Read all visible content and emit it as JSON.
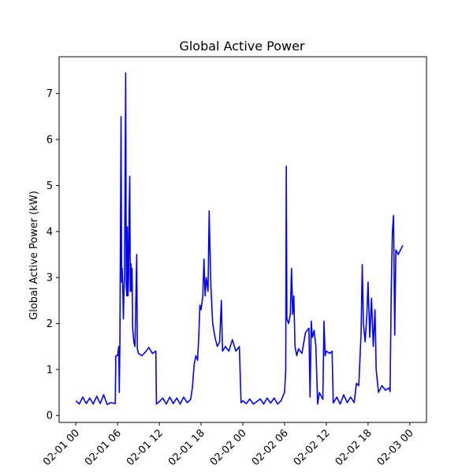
{
  "chart_data": {
    "type": "line",
    "title": "Global Active Power",
    "xlabel": "",
    "ylabel": "Global Active Power (kW)",
    "x_axis_type": "datetime",
    "xlim": [
      "2007-02-01 00:00",
      "2007-03-01 00:00"
    ],
    "ylim": [
      -0.15,
      7.8
    ],
    "xticks": [
      {
        "x": "2007-02-01 00:00",
        "label": "02-01 00"
      },
      {
        "x": "2007-02-01 06:00",
        "label": "02-01 06"
      },
      {
        "x": "2007-02-01 12:00",
        "label": "02-01 12"
      },
      {
        "x": "2007-02-01 18:00",
        "label": "02-01 18"
      },
      {
        "x": "2007-02-02 00:00",
        "label": "02-02 00"
      },
      {
        "x": "2007-02-02 06:00",
        "label": "02-02 06"
      },
      {
        "x": "2007-02-02 12:00",
        "label": "02-02 12"
      },
      {
        "x": "2007-02-02 18:00",
        "label": "02-02 18"
      },
      {
        "x": "2007-02-03 00:00",
        "label": "02-03 00"
      }
    ],
    "yticks": [
      0,
      1,
      2,
      3,
      4,
      5,
      6,
      7
    ],
    "grid": false,
    "legend": "none",
    "series": [
      {
        "color": "#0000ff",
        "points": [
          [
            "2007-02-01 00:00",
            0.32
          ],
          [
            "2007-02-01 00:30",
            0.25
          ],
          [
            "2007-02-01 01:00",
            0.4
          ],
          [
            "2007-02-01 01:30",
            0.26
          ],
          [
            "2007-02-01 02:00",
            0.38
          ],
          [
            "2007-02-01 02:30",
            0.25
          ],
          [
            "2007-02-01 03:00",
            0.42
          ],
          [
            "2007-02-01 03:30",
            0.26
          ],
          [
            "2007-02-01 04:00",
            0.45
          ],
          [
            "2007-02-01 04:30",
            0.24
          ],
          [
            "2007-02-01 05:00",
            0.28
          ],
          [
            "2007-02-01 05:40",
            0.26
          ],
          [
            "2007-02-01 05:45",
            1.3
          ],
          [
            "2007-02-01 06:00",
            1.3
          ],
          [
            "2007-02-01 06:10",
            1.5
          ],
          [
            "2007-02-01 06:15",
            0.5
          ],
          [
            "2007-02-01 06:20",
            1.6
          ],
          [
            "2007-02-01 06:30",
            6.5
          ],
          [
            "2007-02-01 06:35",
            2.9
          ],
          [
            "2007-02-01 06:40",
            3.2
          ],
          [
            "2007-02-01 06:45",
            2.8
          ],
          [
            "2007-02-01 06:50",
            2.1
          ],
          [
            "2007-02-01 06:55",
            2.7
          ],
          [
            "2007-02-01 07:00",
            3.0
          ],
          [
            "2007-02-01 07:10",
            7.45
          ],
          [
            "2007-02-01 07:15",
            2.8
          ],
          [
            "2007-02-01 07:20",
            2.6
          ],
          [
            "2007-02-01 07:25",
            4.1
          ],
          [
            "2007-02-01 07:30",
            2.6
          ],
          [
            "2007-02-01 07:35",
            3.0
          ],
          [
            "2007-02-01 07:40",
            4.5
          ],
          [
            "2007-02-01 07:45",
            5.2
          ],
          [
            "2007-02-01 07:50",
            2.7
          ],
          [
            "2007-02-01 07:55",
            3.3
          ],
          [
            "2007-02-01 08:00",
            2.7
          ],
          [
            "2007-02-01 08:05",
            3.2
          ],
          [
            "2007-02-01 08:10",
            1.9
          ],
          [
            "2007-02-01 08:20",
            1.6
          ],
          [
            "2007-02-01 08:30",
            1.5
          ],
          [
            "2007-02-01 08:45",
            3.5
          ],
          [
            "2007-02-01 08:50",
            1.45
          ],
          [
            "2007-02-01 09:00",
            1.35
          ],
          [
            "2007-02-01 09:30",
            1.3
          ],
          [
            "2007-02-01 10:00",
            1.38
          ],
          [
            "2007-02-01 10:30",
            1.48
          ],
          [
            "2007-02-01 11:00",
            1.35
          ],
          [
            "2007-02-01 11:30",
            1.4
          ],
          [
            "2007-02-01 11:35",
            0.25
          ],
          [
            "2007-02-01 12:00",
            0.3
          ],
          [
            "2007-02-01 12:30",
            0.38
          ],
          [
            "2007-02-01 13:00",
            0.25
          ],
          [
            "2007-02-01 13:30",
            0.4
          ],
          [
            "2007-02-01 14:00",
            0.26
          ],
          [
            "2007-02-01 14:30",
            0.38
          ],
          [
            "2007-02-01 15:00",
            0.25
          ],
          [
            "2007-02-01 15:30",
            0.4
          ],
          [
            "2007-02-01 16:00",
            0.28
          ],
          [
            "2007-02-01 16:30",
            0.35
          ],
          [
            "2007-02-01 16:45",
            0.6
          ],
          [
            "2007-02-01 17:00",
            1.1
          ],
          [
            "2007-02-01 17:15",
            1.3
          ],
          [
            "2007-02-01 17:30",
            1.2
          ],
          [
            "2007-02-01 17:40",
            1.7
          ],
          [
            "2007-02-01 17:50",
            2.4
          ],
          [
            "2007-02-01 18:00",
            2.3
          ],
          [
            "2007-02-01 18:15",
            2.6
          ],
          [
            "2007-02-01 18:25",
            3.4
          ],
          [
            "2007-02-01 18:35",
            2.6
          ],
          [
            "2007-02-01 18:45",
            3.0
          ],
          [
            "2007-02-01 19:00",
            2.7
          ],
          [
            "2007-02-01 19:10",
            4.45
          ],
          [
            "2007-02-01 19:15",
            3.8
          ],
          [
            "2007-02-01 19:25",
            2.8
          ],
          [
            "2007-02-01 19:40",
            2.0
          ],
          [
            "2007-02-01 20:00",
            1.7
          ],
          [
            "2007-02-01 20:20",
            1.5
          ],
          [
            "2007-02-01 20:40",
            1.6
          ],
          [
            "2007-02-01 20:55",
            2.5
          ],
          [
            "2007-02-01 21:05",
            1.4
          ],
          [
            "2007-02-01 21:30",
            1.5
          ],
          [
            "2007-02-01 22:00",
            1.4
          ],
          [
            "2007-02-01 22:30",
            1.65
          ],
          [
            "2007-02-01 23:00",
            1.4
          ],
          [
            "2007-02-01 23:30",
            1.5
          ],
          [
            "2007-02-01 23:45",
            0.28
          ],
          [
            "2007-02-02 00:00",
            0.32
          ],
          [
            "2007-02-02 00:30",
            0.26
          ],
          [
            "2007-02-02 01:00",
            0.36
          ],
          [
            "2007-02-02 01:30",
            0.25
          ],
          [
            "2007-02-02 02:00",
            0.3
          ],
          [
            "2007-02-02 02:30",
            0.36
          ],
          [
            "2007-02-02 03:00",
            0.25
          ],
          [
            "2007-02-02 03:30",
            0.38
          ],
          [
            "2007-02-02 04:00",
            0.27
          ],
          [
            "2007-02-02 04:30",
            0.38
          ],
          [
            "2007-02-02 05:00",
            0.25
          ],
          [
            "2007-02-02 05:30",
            0.32
          ],
          [
            "2007-02-02 05:50",
            0.45
          ],
          [
            "2007-02-02 06:00",
            0.5
          ],
          [
            "2007-02-02 06:10",
            1.0
          ],
          [
            "2007-02-02 06:15",
            5.42
          ],
          [
            "2007-02-02 06:20",
            2.1
          ],
          [
            "2007-02-02 06:35",
            2.0
          ],
          [
            "2007-02-02 06:50",
            2.2
          ],
          [
            "2007-02-02 07:00",
            3.2
          ],
          [
            "2007-02-02 07:10",
            2.2
          ],
          [
            "2007-02-02 07:20",
            2.6
          ],
          [
            "2007-02-02 07:30",
            1.5
          ],
          [
            "2007-02-02 07:45",
            1.3
          ],
          [
            "2007-02-02 08:00",
            1.45
          ],
          [
            "2007-02-02 08:30",
            1.35
          ],
          [
            "2007-02-02 09:00",
            1.8
          ],
          [
            "2007-02-02 09:30",
            1.9
          ],
          [
            "2007-02-02 09:40",
            0.4
          ],
          [
            "2007-02-02 09:50",
            2.05
          ],
          [
            "2007-02-02 10:00",
            1.7
          ],
          [
            "2007-02-02 10:15",
            1.85
          ],
          [
            "2007-02-02 10:30",
            1.5
          ],
          [
            "2007-02-02 10:45",
            0.25
          ],
          [
            "2007-02-02 11:00",
            0.5
          ],
          [
            "2007-02-02 11:30",
            0.35
          ],
          [
            "2007-02-02 11:40",
            2.05
          ],
          [
            "2007-02-02 11:50",
            1.3
          ],
          [
            "2007-02-02 12:00",
            1.4
          ],
          [
            "2007-02-02 12:30",
            1.35
          ],
          [
            "2007-02-02 12:50",
            1.4
          ],
          [
            "2007-02-02 13:00",
            0.27
          ],
          [
            "2007-02-02 13:30",
            0.4
          ],
          [
            "2007-02-02 14:00",
            0.25
          ],
          [
            "2007-02-02 14:30",
            0.45
          ],
          [
            "2007-02-02 15:00",
            0.28
          ],
          [
            "2007-02-02 15:30",
            0.4
          ],
          [
            "2007-02-02 16:00",
            0.28
          ],
          [
            "2007-02-02 16:20",
            0.7
          ],
          [
            "2007-02-02 16:40",
            0.65
          ],
          [
            "2007-02-02 17:00",
            1.8
          ],
          [
            "2007-02-02 17:10",
            3.28
          ],
          [
            "2007-02-02 17:20",
            2.0
          ],
          [
            "2007-02-02 17:35",
            1.6
          ],
          [
            "2007-02-02 17:50",
            2.2
          ],
          [
            "2007-02-02 18:00",
            2.9
          ],
          [
            "2007-02-02 18:15",
            1.7
          ],
          [
            "2007-02-02 18:30",
            2.55
          ],
          [
            "2007-02-02 18:45",
            1.5
          ],
          [
            "2007-02-02 19:00",
            2.3
          ],
          [
            "2007-02-02 19:10",
            1.0
          ],
          [
            "2007-02-02 19:30",
            0.5
          ],
          [
            "2007-02-02 20:00",
            0.65
          ],
          [
            "2007-02-02 20:30",
            0.55
          ],
          [
            "2007-02-02 21:00",
            0.6
          ],
          [
            "2007-02-02 21:10",
            0.52
          ],
          [
            "2007-02-02 21:20",
            2.7
          ],
          [
            "2007-02-02 21:30",
            4.0
          ],
          [
            "2007-02-02 21:40",
            4.35
          ],
          [
            "2007-02-02 21:50",
            1.75
          ],
          [
            "2007-02-02 22:00",
            3.6
          ],
          [
            "2007-02-02 22:20",
            3.5
          ],
          [
            "2007-02-02 22:40",
            3.6
          ],
          [
            "2007-02-02 23:00",
            3.7
          ]
        ]
      }
    ]
  }
}
